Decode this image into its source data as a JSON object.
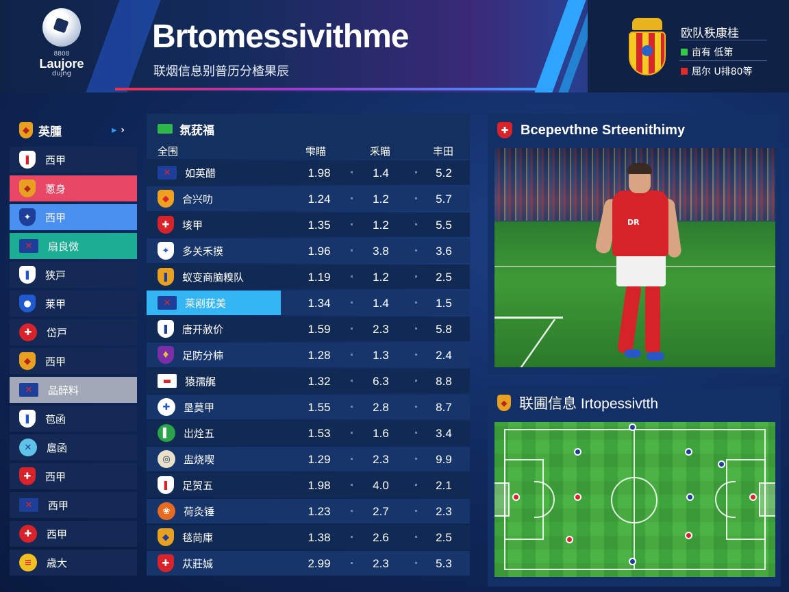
{
  "header": {
    "logo_small": "8808",
    "logo_name": "Laujore",
    "logo_sub": "dujng",
    "title": "Brtomessivithme",
    "subtitle": "联烟信息别普历分楂果辰",
    "right_title": "欧队秩康桂",
    "right_items": [
      {
        "text": "亩有 低第",
        "color": "#34c84a"
      },
      {
        "text": "屈尔 U排80等",
        "color": "#e02b2b"
      }
    ]
  },
  "sidebar": {
    "title": "英腫",
    "arrows": "▸ ›",
    "items": [
      {
        "label": "西甲",
        "bg": "#142a55",
        "badge_bg": "#ffffff",
        "badge_fg": "#d6232a",
        "badge_char": "❚",
        "shape": "shield"
      },
      {
        "label": "蔥身",
        "bg": "#e84766",
        "badge_bg": "#e8a021",
        "badge_fg": "#b5261f",
        "badge_char": "◆",
        "shape": "shield"
      },
      {
        "label": "西甲",
        "bg": "#4a90f0",
        "badge_bg": "#1d3f9a",
        "badge_fg": "#ffffff",
        "badge_char": "✦",
        "shape": "shield"
      },
      {
        "label": "扇良傚",
        "bg": "#1cae94",
        "badge_bg": "#1d3f9a",
        "badge_fg": "#e0262c",
        "badge_char": "✕",
        "shape": "flag"
      },
      {
        "label": "狭戸",
        "bg": "#142a55",
        "badge_bg": "#ffffff",
        "badge_fg": "#2354c8",
        "badge_char": "❚",
        "shape": "shield"
      },
      {
        "label": "莱甲",
        "bg": "#142a55",
        "badge_bg": "#1f5ad0",
        "badge_fg": "#ffffff",
        "badge_char": "●",
        "shape": "shield"
      },
      {
        "label": "岱戸",
        "bg": "#142a55",
        "badge_bg": "#d8232a",
        "badge_fg": "#ffffff",
        "badge_char": "✚",
        "shape": "round"
      },
      {
        "label": "西甲",
        "bg": "#142a55",
        "badge_bg": "#e8a021",
        "badge_fg": "#b5261f",
        "badge_char": "◆",
        "shape": "shield"
      },
      {
        "label": "品醉料",
        "bg": "#a2a8b7",
        "badge_bg": "#1d3f9a",
        "badge_fg": "#e0262c",
        "badge_char": "✕",
        "shape": "flag"
      },
      {
        "label": "苞函",
        "bg": "#142a55",
        "badge_bg": "#ffffff",
        "badge_fg": "#2354c8",
        "badge_char": "❚",
        "shape": "shield"
      },
      {
        "label": "扈函",
        "bg": "#142a55",
        "badge_bg": "#5fc3e8",
        "badge_fg": "#1d3f9a",
        "badge_char": "✕",
        "shape": "round"
      },
      {
        "label": "西甲",
        "bg": "#142a55",
        "badge_bg": "#d8232a",
        "badge_fg": "#ffffff",
        "badge_char": "✚",
        "shape": "shield"
      },
      {
        "label": "西甲",
        "bg": "#142a55",
        "badge_bg": "#1d3f9a",
        "badge_fg": "#e0262c",
        "badge_char": "✕",
        "shape": "flag"
      },
      {
        "label": "西甲",
        "bg": "#142a55",
        "badge_bg": "#d8232a",
        "badge_fg": "#ffffff",
        "badge_char": "✚",
        "shape": "round"
      },
      {
        "label": "歳大",
        "bg": "#142a55",
        "badge_bg": "#f0c020",
        "badge_fg": "#d8232a",
        "badge_char": "≡",
        "shape": "round"
      }
    ]
  },
  "table": {
    "title": "氛莸福",
    "col_labels": [
      "全围",
      "雫瞄",
      "釆瞄",
      "丰田"
    ],
    "rows": [
      {
        "name": "如英醋",
        "v1": "1.98",
        "v2": "1.4",
        "v3": "5.2",
        "badge_bg": "#1d3f9a",
        "badge_fg": "#e0262c",
        "badge_char": "✕",
        "shape": "flag"
      },
      {
        "name": "合兴叻",
        "v1": "1.24",
        "v2": "1.2",
        "v3": "5.7",
        "badge_bg": "#f0a020",
        "badge_fg": "#d8232a",
        "badge_char": "◆",
        "shape": "shield"
      },
      {
        "name": "垓甲",
        "v1": "1.35",
        "v2": "1.2",
        "v3": "5.5",
        "badge_bg": "#d8232a",
        "badge_fg": "#ffffff",
        "badge_char": "✚",
        "shape": "shield"
      },
      {
        "name": "多关禾摸",
        "v1": "1.96",
        "v2": "3.8",
        "v3": "3.6",
        "badge_bg": "#ffffff",
        "badge_fg": "#2354c8",
        "badge_char": "✦",
        "shape": "shield"
      },
      {
        "name": "蚁变商脑糗队",
        "v1": "1.19",
        "v2": "1.2",
        "v3": "2.5",
        "badge_bg": "#e8a021",
        "badge_fg": "#1d3f9a",
        "badge_char": "❚",
        "shape": "shield"
      },
      {
        "name": "莱剐莸美",
        "v1": "1.34",
        "v2": "1.4",
        "v3": "1.5",
        "badge_bg": "#1d3f9a",
        "badge_fg": "#e0262c",
        "badge_char": "✕",
        "shape": "flag",
        "highlight": true
      },
      {
        "name": "唐开赦价",
        "v1": "1.59",
        "v2": "2.3",
        "v3": "5.8",
        "badge_bg": "#ffffff",
        "badge_fg": "#1d3f9a",
        "badge_char": "❚",
        "shape": "shield"
      },
      {
        "name": "足防分枾",
        "v1": "1.28",
        "v2": "1.3",
        "v3": "2.4",
        "badge_bg": "#7a2fa8",
        "badge_fg": "#e8c040",
        "badge_char": "♦",
        "shape": "shield"
      },
      {
        "name": "猿孺艉",
        "v1": "1.32",
        "v2": "6.3",
        "v3": "8.8",
        "badge_bg": "#ffffff",
        "badge_fg": "#d8232a",
        "badge_char": "▬",
        "shape": "flag"
      },
      {
        "name": "垦莫甲",
        "v1": "1.55",
        "v2": "2.8",
        "v3": "8.7",
        "badge_bg": "#ffffff",
        "badge_fg": "#2354c8",
        "badge_char": "✚",
        "shape": "round"
      },
      {
        "name": "岀烇五",
        "v1": "1.53",
        "v2": "1.6",
        "v3": "3.4",
        "badge_bg": "#2aa34a",
        "badge_fg": "#ffffff",
        "badge_char": "▌",
        "shape": "round"
      },
      {
        "name": "盅烧喫",
        "v1": "1.29",
        "v2": "2.3",
        "v3": "9.9",
        "badge_bg": "#e8e0c8",
        "badge_fg": "#1d2e5a",
        "badge_char": "◎",
        "shape": "round"
      },
      {
        "name": "足贺五",
        "v1": "1.98",
        "v2": "4.0",
        "v3": "2.1",
        "badge_bg": "#ffffff",
        "badge_fg": "#d8232a",
        "badge_char": "❚",
        "shape": "shield"
      },
      {
        "name": "荷灸锤",
        "v1": "1.23",
        "v2": "2.7",
        "v3": "2.3",
        "badge_bg": "#e86a21",
        "badge_fg": "#ffffff",
        "badge_char": "❀",
        "shape": "round"
      },
      {
        "name": "毯苘庫",
        "v1": "1.38",
        "v2": "2.6",
        "v3": "2.5",
        "badge_bg": "#e8a021",
        "badge_fg": "#1d3f9a",
        "badge_char": "◆",
        "shape": "shield"
      },
      {
        "name": "苁莊娍",
        "v1": "2.99",
        "v2": "2.3",
        "v3": "5.3",
        "badge_bg": "#d8232a",
        "badge_fg": "#ffffff",
        "badge_char": "✚",
        "shape": "shield"
      }
    ]
  },
  "player_panel": {
    "title": "Bcepevthne Srteenithimy",
    "jersey_text": "DR"
  },
  "formation_panel": {
    "title": "联圃信息 Irtopessivtth"
  },
  "colors": {
    "accent": "#35b6f4",
    "red": "#d8232a",
    "pitch": "#3fa33b"
  }
}
